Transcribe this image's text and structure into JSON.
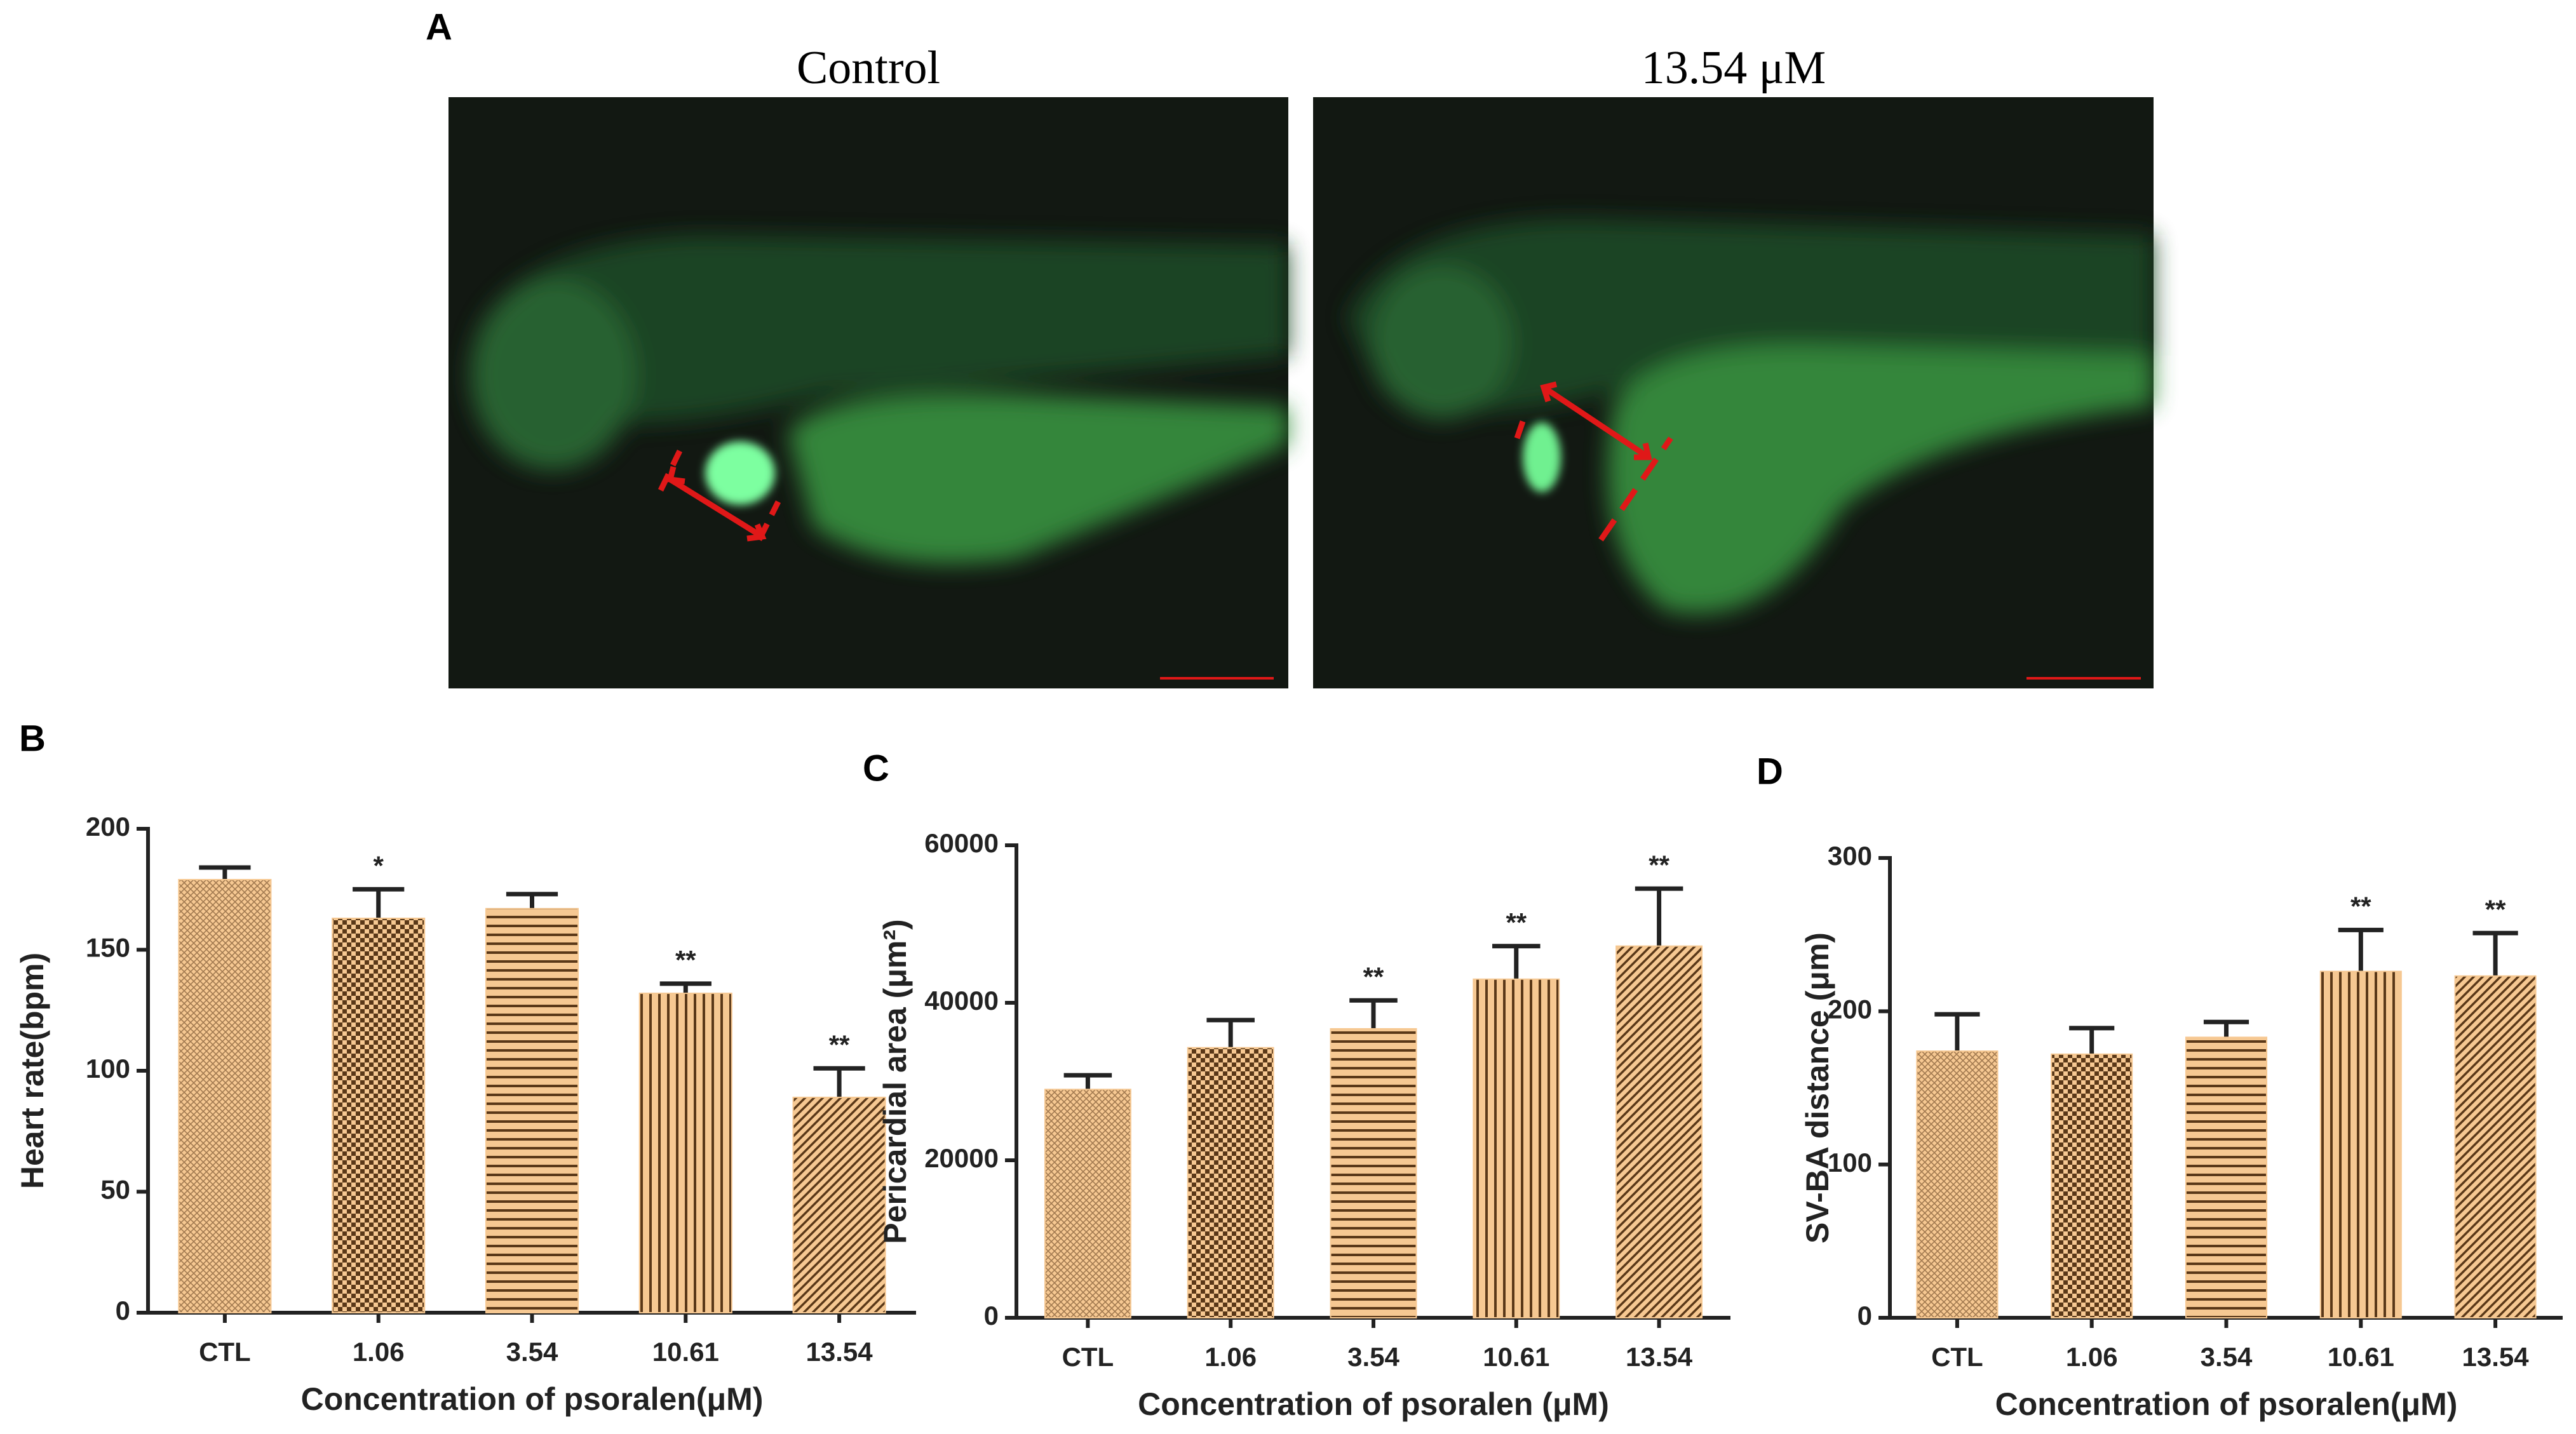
{
  "figure": {
    "panel_a": {
      "label": "A",
      "titles": [
        "Control",
        "13.54 μM"
      ]
    }
  },
  "chart_data": [
    {
      "type": "bar",
      "panel_label": "B",
      "ylabel": "Heart rate(bpm)",
      "xlabel": "Concentration of psoralen(μM)",
      "categories": [
        "CTL",
        "1.06",
        "3.54",
        "10.61",
        "13.54"
      ],
      "values": [
        179,
        163,
        167,
        132,
        89
      ],
      "errors": [
        5,
        12,
        6,
        4,
        12
      ],
      "annotations": [
        null,
        "*",
        null,
        "**",
        "**"
      ],
      "patterns": [
        "crosshatch",
        "checker",
        "horizontal",
        "vertical",
        "diagonal"
      ],
      "fill_color": "#f6c892",
      "stripe_color": "#5a3818",
      "ylim": [
        0,
        200
      ],
      "yticks": [
        0,
        50,
        100,
        150,
        200
      ]
    },
    {
      "type": "bar",
      "panel_label": "C",
      "ylabel": "Pericardial area (μm²)",
      "xlabel": "Concentration of psoralen (μM)",
      "categories": [
        "CTL",
        "1.06",
        "3.54",
        "10.61",
        "13.54"
      ],
      "values": [
        29000,
        34300,
        36700,
        43000,
        47200
      ],
      "errors": [
        1800,
        3500,
        3600,
        4200,
        7300
      ],
      "annotations": [
        null,
        null,
        "**",
        "**",
        "**"
      ],
      "patterns": [
        "crosshatch",
        "checker",
        "horizontal",
        "vertical",
        "diagonal"
      ],
      "fill_color": "#f6c892",
      "stripe_color": "#5a3818",
      "ylim": [
        0,
        60000
      ],
      "yticks": [
        0,
        20000,
        40000,
        60000
      ]
    },
    {
      "type": "bar",
      "panel_label": "D",
      "ylabel": "SV-BA distance (μm)",
      "xlabel": "Concentration of psoralen(μM)",
      "categories": [
        "CTL",
        "1.06",
        "3.54",
        "10.61",
        "13.54"
      ],
      "values": [
        174,
        172,
        183,
        226,
        223
      ],
      "errors": [
        24,
        17,
        10,
        27,
        28
      ],
      "annotations": [
        null,
        null,
        null,
        "**",
        "**"
      ],
      "patterns": [
        "crosshatch",
        "checker",
        "horizontal",
        "vertical",
        "diagonal"
      ],
      "fill_color": "#f6c892",
      "stripe_color": "#5a3818",
      "ylim": [
        0,
        300
      ],
      "yticks": [
        0,
        100,
        200,
        300
      ]
    }
  ]
}
